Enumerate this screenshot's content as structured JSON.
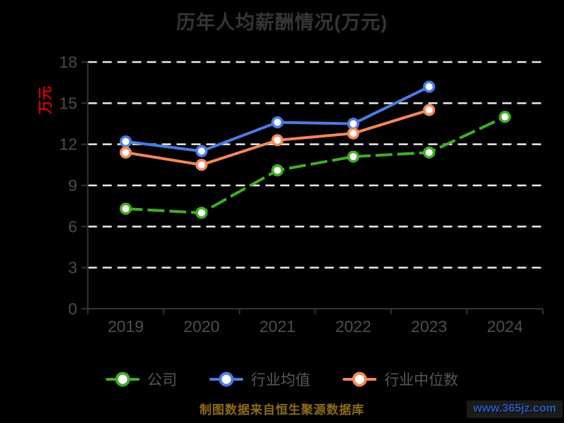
{
  "title": {
    "text": "历年人均薪酬情况(万元)"
  },
  "y_axis_label": {
    "text": "万元"
  },
  "footer": {
    "source_note": "制图数据来自恒生聚源数据库"
  },
  "watermark": {
    "text": "www.365jz.com"
  },
  "colors": {
    "background": "#000000",
    "title_text": "#363636",
    "axis": "#333333",
    "tick_label": "#4d4d4d",
    "gridline": "#ececec",
    "legend_text": "#595959",
    "y_axis_label_text": "#d40000",
    "source_note_text": "#8d6c15",
    "watermark_text": "#2a5cb8"
  },
  "chart_data": {
    "type": "line",
    "title": "历年人均薪酬情况(万元)",
    "ylabel": "万元",
    "categories": [
      "2019",
      "2020",
      "2021",
      "2022",
      "2023",
      "2024"
    ],
    "series": [
      {
        "id": "company",
        "name": "公司",
        "color": "#41ad25",
        "line_style": "dashed",
        "values": [
          7.3,
          7.0,
          10.1,
          11.1,
          11.4,
          14.0
        ]
      },
      {
        "id": "industry-mean",
        "name": "行业均值",
        "color": "#4a7de2",
        "line_style": "solid",
        "values": [
          12.2,
          11.5,
          13.6,
          13.5,
          16.2,
          null
        ]
      },
      {
        "id": "industry-median",
        "name": "行业中位数",
        "color": "#f4875a",
        "line_style": "solid",
        "values": [
          11.4,
          10.5,
          12.3,
          12.8,
          14.5,
          null
        ]
      }
    ],
    "ylim": [
      0,
      18
    ],
    "yticks": [
      0,
      3,
      6,
      9,
      12,
      15,
      18
    ],
    "grid": "horizontal dashed white gridlines",
    "legend_position": "bottom",
    "marker": "circle, white fill, colored ring"
  }
}
